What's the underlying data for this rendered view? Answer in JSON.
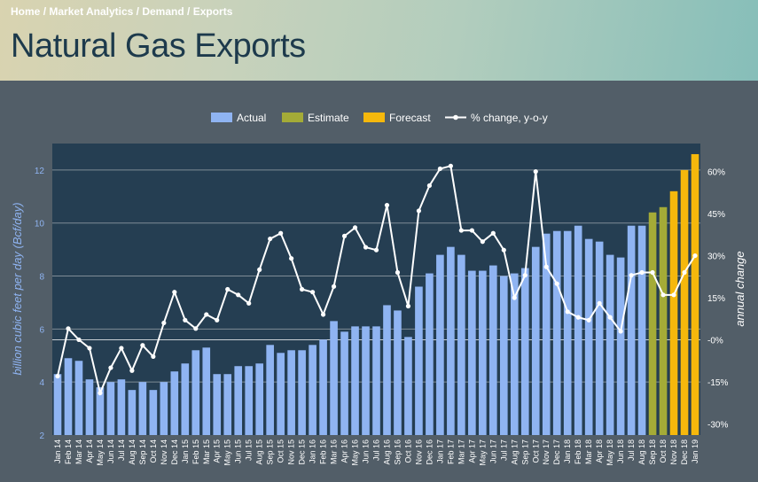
{
  "breadcrumb": {
    "items": [
      "Home",
      "Market Analytics",
      "Demand",
      "Exports"
    ],
    "separator": "/"
  },
  "page_title": "Natural Gas Exports",
  "colors": {
    "actual": "#8fb4f2",
    "estimate": "#a4ab37",
    "forecast": "#f5b80c",
    "line": "#ffffff",
    "plot_bg": "#253e52",
    "page_bg": "#525e68",
    "left_axis_text": "#8fb4f2"
  },
  "chart_data": {
    "type": "bar",
    "title": "",
    "legend": {
      "placement": "top-center",
      "items": [
        {
          "label": "Actual",
          "kind": "bar",
          "color": "#8fb4f2"
        },
        {
          "label": "Estimate",
          "kind": "bar",
          "color": "#a4ab37"
        },
        {
          "label": "Forecast",
          "kind": "bar",
          "color": "#f5b80c"
        },
        {
          "label": "% change, y-o-y",
          "kind": "line",
          "color": "#ffffff"
        }
      ]
    },
    "ylabel": "billion cubic feet per day (Bcf/day)",
    "y2label": "annual change",
    "ylim": [
      2,
      13
    ],
    "y_ticks": [
      2,
      4,
      6,
      8,
      10,
      12
    ],
    "y2lim": [
      -34,
      70
    ],
    "y2_ticks": [
      -30,
      -15,
      0,
      15,
      30,
      45,
      60
    ],
    "y2_tick_labels": [
      "-30%",
      "-15%",
      "-0%",
      "15%",
      "30%",
      "45%",
      "60%"
    ],
    "grid": true,
    "categories": [
      "Jan 14",
      "Feb 14",
      "Mar 14",
      "Apr 14",
      "May 14",
      "Jun 14",
      "Jul 14",
      "Aug 14",
      "Sep 14",
      "Oct 14",
      "Nov 14",
      "Dec 14",
      "Jan 15",
      "Feb 15",
      "Mar 15",
      "Apr 15",
      "May 15",
      "Jun 15",
      "Jul 15",
      "Aug 15",
      "Sep 15",
      "Oct 15",
      "Nov 15",
      "Dec 15",
      "Jan 16",
      "Feb 16",
      "Mar 16",
      "Apr 16",
      "May 16",
      "Jun 16",
      "Jul 16",
      "Aug 16",
      "Sep 16",
      "Oct 16",
      "Nov 16",
      "Dec 16",
      "Jan 17",
      "Feb 17",
      "Mar 17",
      "Apr 17",
      "May 17",
      "Jun 17",
      "Jul 17",
      "Aug 17",
      "Sep 17",
      "Oct 17",
      "Nov 17",
      "Dec 17",
      "Jan 18",
      "Feb 18",
      "Mar 18",
      "Apr 18",
      "May 18",
      "Jun 18",
      "Jul 18",
      "Aug 18",
      "Sep 18",
      "Oct 18",
      "Nov 18",
      "Dec 18",
      "Jan 19"
    ],
    "series": [
      {
        "name": "Actual",
        "axis": "left",
        "values": [
          4.3,
          4.9,
          4.8,
          4.1,
          3.8,
          4.0,
          4.1,
          3.7,
          4.0,
          3.7,
          4.0,
          4.4,
          4.7,
          5.2,
          5.3,
          4.3,
          4.3,
          4.6,
          4.6,
          4.7,
          5.4,
          5.1,
          5.2,
          5.2,
          5.4,
          5.6,
          6.3,
          5.9,
          6.1,
          6.1,
          6.1,
          6.9,
          6.7,
          5.7,
          7.6,
          8.1,
          8.8,
          9.1,
          8.8,
          8.2,
          8.2,
          8.4,
          8.0,
          8.1,
          8.3,
          9.1,
          9.6,
          9.7,
          9.7,
          9.9,
          9.4,
          9.3,
          8.8,
          8.7,
          9.9,
          9.9,
          null,
          null,
          null,
          null,
          null
        ]
      },
      {
        "name": "Estimate",
        "axis": "left",
        "values": [
          null,
          null,
          null,
          null,
          null,
          null,
          null,
          null,
          null,
          null,
          null,
          null,
          null,
          null,
          null,
          null,
          null,
          null,
          null,
          null,
          null,
          null,
          null,
          null,
          null,
          null,
          null,
          null,
          null,
          null,
          null,
          null,
          null,
          null,
          null,
          null,
          null,
          null,
          null,
          null,
          null,
          null,
          null,
          null,
          null,
          null,
          null,
          null,
          null,
          null,
          null,
          null,
          null,
          null,
          null,
          null,
          10.4,
          10.6,
          null,
          null,
          null
        ]
      },
      {
        "name": "Forecast",
        "axis": "left",
        "values": [
          null,
          null,
          null,
          null,
          null,
          null,
          null,
          null,
          null,
          null,
          null,
          null,
          null,
          null,
          null,
          null,
          null,
          null,
          null,
          null,
          null,
          null,
          null,
          null,
          null,
          null,
          null,
          null,
          null,
          null,
          null,
          null,
          null,
          null,
          null,
          null,
          null,
          null,
          null,
          null,
          null,
          null,
          null,
          null,
          null,
          null,
          null,
          null,
          null,
          null,
          null,
          null,
          null,
          null,
          null,
          null,
          null,
          null,
          11.2,
          12.0,
          12.6
        ]
      },
      {
        "name": "% change, y-o-y",
        "axis": "right",
        "type": "line",
        "values": [
          -13,
          4,
          0,
          -3,
          -19,
          -10,
          -3,
          -11,
          -2,
          -6,
          6,
          17,
          7,
          4,
          9,
          7,
          18,
          16,
          13,
          25,
          36,
          38,
          29,
          18,
          17,
          9,
          19,
          37,
          40,
          33,
          32,
          48,
          24,
          12,
          46,
          55,
          61,
          62,
          39,
          39,
          35,
          38,
          32,
          15,
          23,
          60,
          26,
          20,
          10,
          8,
          7,
          13,
          8,
          3,
          23,
          24,
          24,
          16,
          16,
          24,
          30
        ]
      }
    ]
  }
}
